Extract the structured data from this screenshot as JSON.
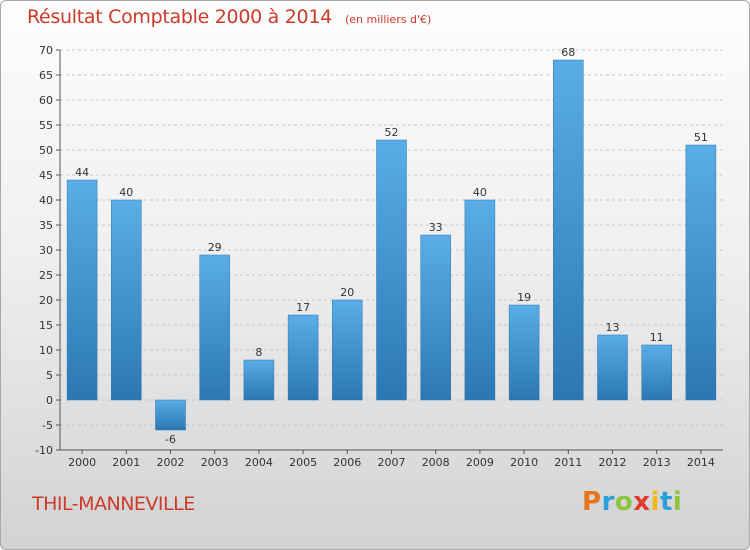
{
  "title": "Résultat Comptable 2000 à 2014",
  "subtitle": "(en milliers d'€)",
  "place": "THIL-MANNEVILLE",
  "logo": {
    "text": "Proxiti",
    "letters": [
      {
        "ch": "P",
        "color": "#e8741c"
      },
      {
        "ch": "r",
        "color": "#2a9fd8"
      },
      {
        "ch": "o",
        "color": "#8cc63f"
      },
      {
        "ch": "x",
        "color": "#e03a2e"
      },
      {
        "ch": "i",
        "color": "#f2b71c"
      },
      {
        "ch": "t",
        "color": "#2a9fd8"
      },
      {
        "ch": "i",
        "color": "#8cc63f"
      }
    ]
  },
  "colors": {
    "bar_top": "#5aade6",
    "bar_bottom": "#2b77b4",
    "title": "#cc3a2a"
  },
  "chart_data": {
    "type": "bar",
    "categories": [
      "2000",
      "2001",
      "2002",
      "2003",
      "2004",
      "2005",
      "2006",
      "2007",
      "2008",
      "2009",
      "2010",
      "2011",
      "2012",
      "2013",
      "2014"
    ],
    "values": [
      44,
      40,
      -6,
      29,
      8,
      17,
      20,
      52,
      33,
      40,
      19,
      68,
      13,
      11,
      51
    ],
    "ylim": [
      -10,
      70
    ],
    "yticks": [
      -10,
      -5,
      0,
      5,
      10,
      15,
      20,
      25,
      30,
      35,
      40,
      45,
      50,
      55,
      60,
      65,
      70
    ],
    "grid": true,
    "data_labels": true
  }
}
